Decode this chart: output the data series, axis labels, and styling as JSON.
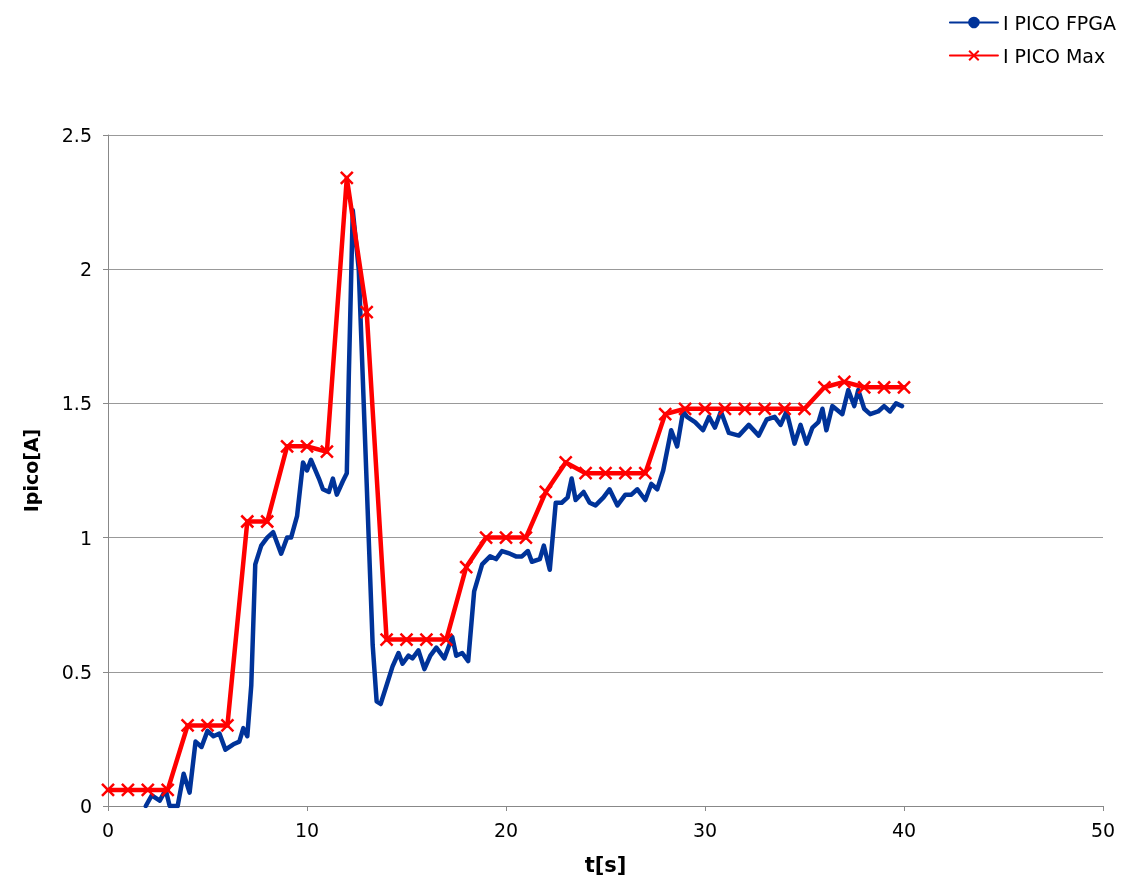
{
  "chart_data": {
    "type": "line",
    "xlabel": "t[s]",
    "ylabel": "Ipico[A]",
    "xlim": [
      0,
      50
    ],
    "xticks": [
      0,
      10,
      20,
      30,
      40,
      50
    ],
    "ylim": [
      0,
      2.5
    ],
    "yticks": [
      0,
      0.5,
      1,
      1.5,
      2,
      2.5
    ],
    "grid": "y",
    "legend": "top right",
    "series": [
      {
        "name": "I PICO FPGA",
        "color": "#003399",
        "marker": "none",
        "x": [
          1.9,
          2.2,
          2.6,
          2.9,
          3.1,
          3.5,
          3.8,
          4.1,
          4.4,
          4.7,
          5.0,
          5.3,
          5.6,
          5.9,
          6.3,
          6.6,
          6.8,
          7.0,
          7.2,
          7.4,
          7.7,
          8.0,
          8.3,
          8.5,
          8.7,
          9.0,
          9.2,
          9.5,
          9.8,
          10.0,
          10.2,
          10.6,
          10.8,
          11.1,
          11.3,
          11.5,
          11.8,
          12.0,
          12.1,
          12.3,
          12.6,
          13.0,
          13.3,
          13.5,
          13.7,
          14.0,
          14.3,
          14.6,
          14.8,
          15.1,
          15.3,
          15.6,
          15.9,
          16.2,
          16.5,
          16.9,
          17.3,
          17.5,
          17.8,
          18.1,
          18.4,
          18.8,
          19.2,
          19.5,
          19.8,
          20.2,
          20.5,
          20.8,
          21.1,
          21.3,
          21.7,
          21.9,
          22.2,
          22.5,
          22.8,
          23.1,
          23.3,
          23.5,
          23.9,
          24.2,
          24.5,
          24.9,
          25.2,
          25.6,
          26.0,
          26.3,
          26.6,
          27.0,
          27.3,
          27.6,
          27.9,
          28.3,
          28.6,
          28.9,
          29.1,
          29.5,
          29.9,
          30.2,
          30.5,
          30.8,
          31.2,
          31.7,
          32.2,
          32.7,
          33.1,
          33.5,
          33.8,
          34.1,
          34.5,
          34.8,
          35.1,
          35.4,
          35.7,
          35.9,
          36.1,
          36.4,
          36.9,
          37.2,
          37.5,
          37.7,
          38.0,
          38.3,
          38.7,
          39.0,
          39.3,
          39.6,
          39.9
        ],
        "values": [
          0,
          0.04,
          0.02,
          0.06,
          0,
          0,
          0.12,
          0.05,
          0.24,
          0.22,
          0.28,
          0.26,
          0.27,
          0.21,
          0.23,
          0.24,
          0.29,
          0.26,
          0.45,
          0.9,
          0.97,
          1.0,
          1.02,
          0.98,
          0.94,
          1.0,
          1.0,
          1.08,
          1.28,
          1.25,
          1.29,
          1.22,
          1.18,
          1.17,
          1.22,
          1.16,
          1.21,
          1.24,
          1.6,
          2.22,
          2.0,
          1.2,
          0.6,
          0.39,
          0.38,
          0.45,
          0.52,
          0.57,
          0.53,
          0.56,
          0.55,
          0.58,
          0.51,
          0.56,
          0.59,
          0.55,
          0.63,
          0.56,
          0.57,
          0.54,
          0.8,
          0.9,
          0.93,
          0.92,
          0.95,
          0.94,
          0.93,
          0.93,
          0.95,
          0.91,
          0.92,
          0.97,
          0.88,
          1.13,
          1.13,
          1.15,
          1.22,
          1.14,
          1.17,
          1.13,
          1.12,
          1.15,
          1.18,
          1.12,
          1.16,
          1.16,
          1.18,
          1.14,
          1.2,
          1.18,
          1.25,
          1.4,
          1.34,
          1.47,
          1.45,
          1.43,
          1.4,
          1.45,
          1.41,
          1.47,
          1.39,
          1.38,
          1.42,
          1.38,
          1.44,
          1.45,
          1.42,
          1.47,
          1.35,
          1.42,
          1.35,
          1.41,
          1.43,
          1.48,
          1.4,
          1.49,
          1.46,
          1.55,
          1.49,
          1.55,
          1.48,
          1.46,
          1.47,
          1.49,
          1.47,
          1.5,
          1.49
        ]
      },
      {
        "name": "I PICO Max",
        "color": "#ff0000",
        "marker": "cross",
        "x": [
          0,
          1,
          2,
          3,
          4,
          5,
          6,
          7,
          8,
          9,
          10,
          11,
          12,
          13,
          14,
          15,
          16,
          17,
          18,
          19,
          20,
          21,
          22,
          23,
          24,
          25,
          26,
          27,
          28,
          29,
          30,
          31,
          32,
          33,
          34,
          35,
          36,
          37,
          38,
          39,
          40
        ],
        "values": [
          0.06,
          0.06,
          0.06,
          0.06,
          0.3,
          0.3,
          0.3,
          1.06,
          1.06,
          1.34,
          1.34,
          1.32,
          2.34,
          1.84,
          0.62,
          0.62,
          0.62,
          0.62,
          0.89,
          1.0,
          1.0,
          1.0,
          1.17,
          1.28,
          1.24,
          1.24,
          1.24,
          1.24,
          1.46,
          1.48,
          1.48,
          1.48,
          1.48,
          1.48,
          1.48,
          1.48,
          1.56,
          1.58,
          1.56,
          1.56,
          1.56
        ]
      }
    ]
  }
}
